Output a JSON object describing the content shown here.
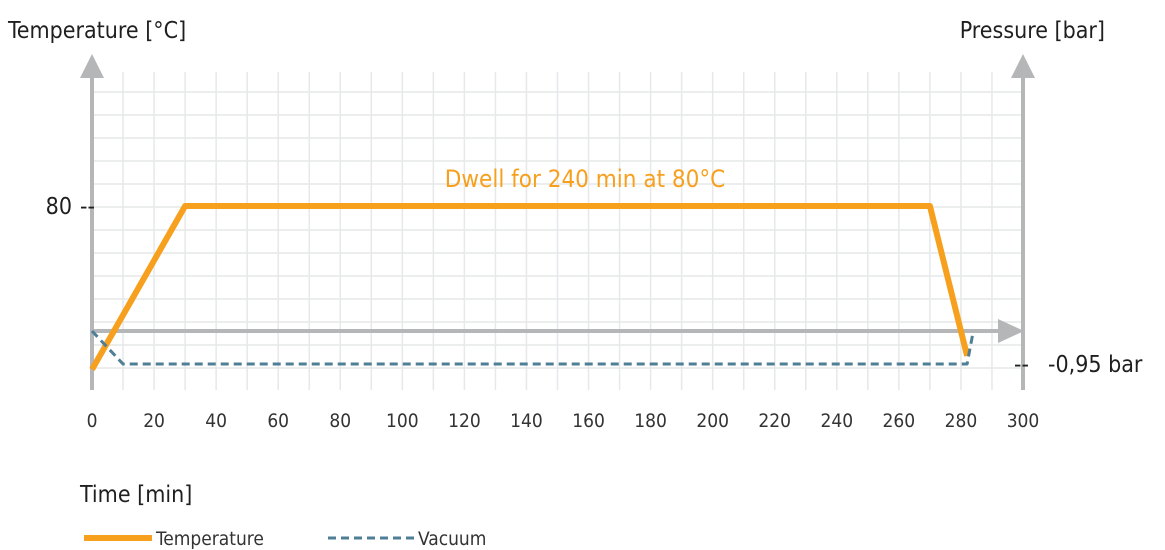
{
  "chart_data": {
    "type": "line",
    "left_axis_title": "Temperature [°C]",
    "right_axis_title": "Pressure [bar]",
    "xlabel": "Time [min]",
    "xlim": [
      0,
      300
    ],
    "x_ticks": [
      0,
      20,
      40,
      60,
      80,
      100,
      120,
      140,
      160,
      180,
      200,
      220,
      240,
      260,
      280,
      300
    ],
    "y_tick_label": "80",
    "y_tick_value": 80,
    "pressure_tick_label": "-0,95 bar",
    "pressure_tick_value": -0.95,
    "annotation": "Dwell for 240  min at 80°C",
    "grid": true,
    "series": [
      {
        "name": "Temperature",
        "axis": "left",
        "color": "#f7a01e",
        "style": "solid",
        "points": [
          [
            0,
            20
          ],
          [
            30,
            80
          ],
          [
            270,
            80
          ],
          [
            282,
            25
          ]
        ]
      },
      {
        "name": "Vacuum",
        "axis": "right",
        "color": "#4f7f96",
        "style": "dashed",
        "points": [
          [
            0,
            0
          ],
          [
            10,
            -0.95
          ],
          [
            282,
            -0.95
          ],
          [
            284,
            0
          ]
        ]
      }
    ],
    "legend_position": "bottom-left"
  }
}
